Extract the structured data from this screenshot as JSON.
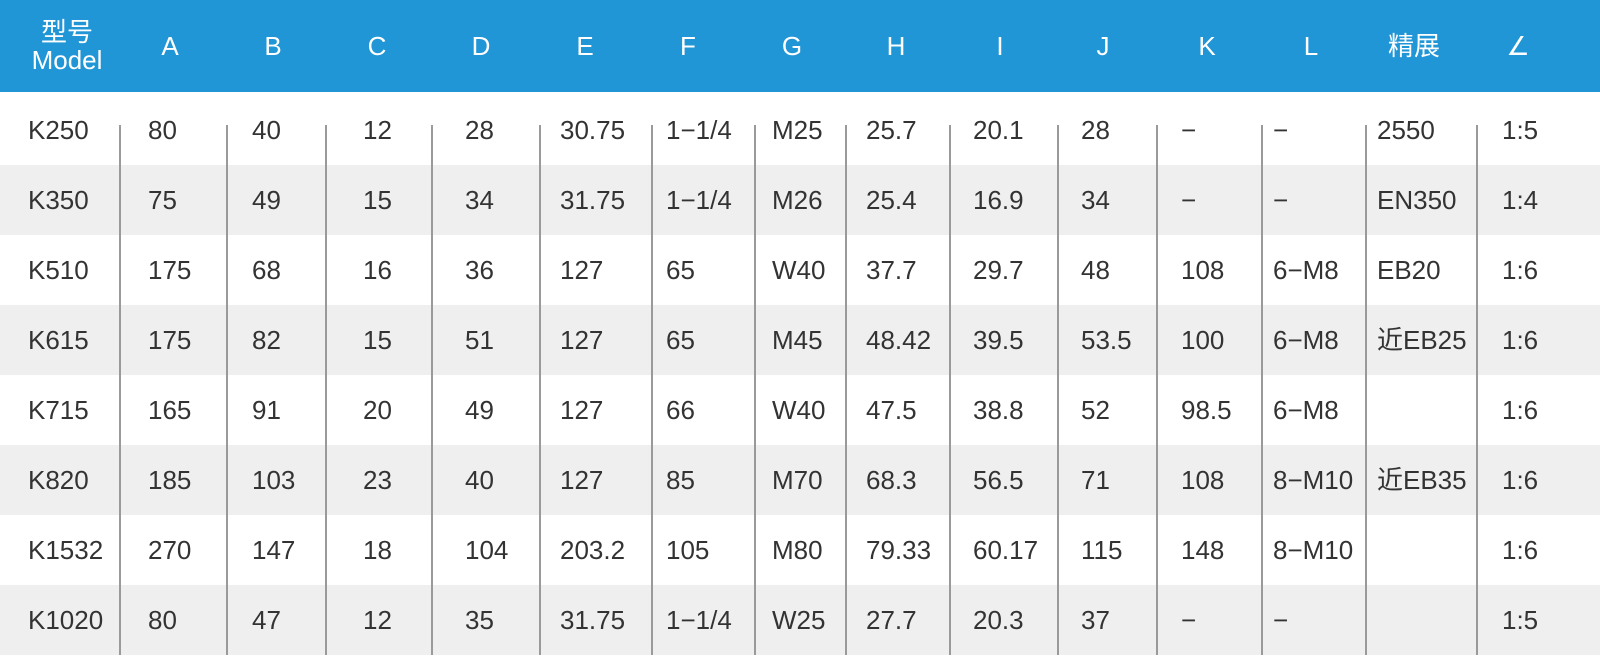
{
  "header": {
    "columns": [
      {
        "line1": "型号",
        "line2": "Model"
      },
      {
        "line1": "A"
      },
      {
        "line1": "B"
      },
      {
        "line1": "C"
      },
      {
        "line1": "D"
      },
      {
        "line1": "E"
      },
      {
        "line1": "F"
      },
      {
        "line1": "G"
      },
      {
        "line1": "H"
      },
      {
        "line1": "I"
      },
      {
        "line1": "J"
      },
      {
        "line1": "K"
      },
      {
        "line1": "L"
      },
      {
        "line1": "精展"
      },
      {
        "line1": "∠"
      }
    ]
  },
  "colors": {
    "header_bg": "#2196d6",
    "alt_row_bg": "#efefef",
    "text": "#333333"
  },
  "rows": [
    [
      "K250",
      "80",
      "40",
      "12",
      "28",
      "30.75",
      "1−1/4",
      "M25",
      "25.7",
      "20.1",
      "28",
      "−",
      "−",
      "2550",
      "1:5"
    ],
    [
      "K350",
      "75",
      "49",
      "15",
      "34",
      "31.75",
      "1−1/4",
      "M26",
      "25.4",
      "16.9",
      "34",
      "−",
      "−",
      "EN350",
      "1:4"
    ],
    [
      "K510",
      "175",
      "68",
      "16",
      "36",
      "127",
      "65",
      "W40",
      "37.7",
      "29.7",
      "48",
      "108",
      "6−M8",
      "EB20",
      "1:6"
    ],
    [
      "K615",
      "175",
      "82",
      "15",
      "51",
      "127",
      "65",
      "M45",
      "48.42",
      "39.5",
      "53.5",
      "100",
      "6−M8",
      "近EB25",
      "1:6"
    ],
    [
      "K715",
      "165",
      "91",
      "20",
      "49",
      "127",
      "66",
      "W40",
      "47.5",
      "38.8",
      "52",
      "98.5",
      "6−M8",
      "",
      "1:6"
    ],
    [
      "K820",
      "185",
      "103",
      "23",
      "40",
      "127",
      "85",
      "M70",
      "68.3",
      "56.5",
      "71",
      "108",
      "8−M10",
      "近EB35",
      "1:6"
    ],
    [
      "K1532",
      "270",
      "147",
      "18",
      "104",
      "203.2",
      "105",
      "M80",
      "79.33",
      "60.17",
      "115",
      "148",
      "8−M10",
      "",
      "1:6"
    ],
    [
      "K1020",
      "80",
      "47",
      "12",
      "35",
      "31.75",
      "1−1/4",
      "W25",
      "27.7",
      "20.3",
      "37",
      "−",
      "−",
      "",
      "1:5"
    ]
  ]
}
